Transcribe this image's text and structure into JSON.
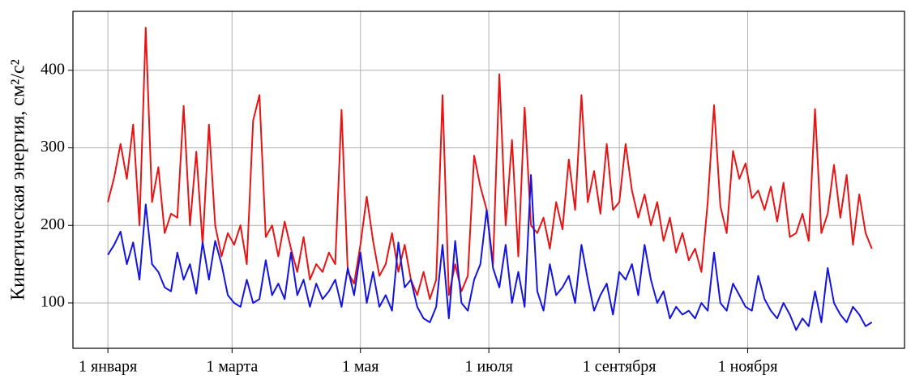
{
  "chart_data": {
    "type": "line",
    "y_label": "Кинетическая энергия, см²/с²",
    "x": [
      0,
      3,
      6,
      9,
      12,
      15,
      18,
      21,
      24,
      27,
      30,
      33,
      36,
      39,
      42,
      45,
      48,
      51,
      54,
      57,
      60,
      63,
      66,
      69,
      72,
      75,
      78,
      81,
      84,
      87,
      90,
      93,
      96,
      99,
      102,
      105,
      108,
      111,
      114,
      117,
      120,
      123,
      126,
      129,
      132,
      135,
      138,
      141,
      144,
      147,
      150,
      153,
      156,
      159,
      162,
      165,
      168,
      171,
      174,
      177,
      180,
      183,
      186,
      189,
      192,
      195,
      198,
      201,
      204,
      207,
      210,
      213,
      216,
      219,
      222,
      225,
      228,
      231,
      234,
      237,
      240,
      243,
      246,
      249,
      252,
      255,
      258,
      261,
      264,
      267,
      270,
      273,
      276,
      279,
      282,
      285,
      288,
      291,
      294,
      297,
      300,
      303,
      306,
      309,
      312,
      315,
      318,
      321,
      324,
      327,
      330,
      333,
      336,
      339,
      342,
      345,
      348,
      351,
      354,
      357,
      360,
      363
    ],
    "series": [
      {
        "color": "#e81414",
        "values": [
          230,
          262,
          305,
          260,
          330,
          200,
          455,
          230,
          275,
          190,
          215,
          210,
          354,
          200,
          295,
          175,
          330,
          200,
          160,
          190,
          175,
          200,
          150,
          335,
          368,
          185,
          200,
          160,
          205,
          170,
          140,
          185,
          130,
          150,
          140,
          165,
          150,
          349,
          140,
          125,
          175,
          237,
          180,
          135,
          150,
          190,
          140,
          175,
          130,
          110,
          140,
          105,
          130,
          368,
          110,
          150,
          115,
          135,
          290,
          250,
          220,
          150,
          395,
          200,
          310,
          160,
          352,
          200,
          190,
          210,
          170,
          230,
          195,
          285,
          220,
          368,
          230,
          270,
          215,
          305,
          220,
          230,
          305,
          245,
          210,
          240,
          200,
          230,
          180,
          210,
          165,
          190,
          155,
          170,
          140,
          230,
          355,
          225,
          190,
          296,
          260,
          280,
          235,
          245,
          220,
          250,
          205,
          255,
          185,
          190,
          215,
          180,
          350,
          190,
          215,
          278,
          210,
          265,
          175,
          240,
          190,
          170
        ]
      },
      {
        "color": "#1414e0",
        "values": [
          162,
          175,
          192,
          150,
          178,
          130,
          227,
          150,
          140,
          120,
          115,
          165,
          130,
          150,
          112,
          178,
          130,
          180,
          150,
          110,
          100,
          95,
          130,
          100,
          105,
          155,
          110,
          125,
          105,
          165,
          110,
          130,
          95,
          125,
          105,
          115,
          130,
          95,
          145,
          110,
          165,
          100,
          140,
          95,
          110,
          90,
          178,
          120,
          130,
          95,
          80,
          75,
          95,
          175,
          80,
          180,
          100,
          90,
          130,
          150,
          220,
          145,
          120,
          175,
          100,
          140,
          95,
          265,
          115,
          90,
          150,
          110,
          120,
          135,
          100,
          175,
          130,
          90,
          110,
          125,
          85,
          140,
          130,
          150,
          110,
          175,
          130,
          100,
          115,
          80,
          95,
          85,
          90,
          80,
          100,
          90,
          165,
          100,
          90,
          125,
          110,
          95,
          90,
          135,
          105,
          90,
          80,
          100,
          85,
          65,
          80,
          70,
          115,
          75,
          145,
          100,
          85,
          75,
          95,
          85,
          70,
          75
        ]
      }
    ],
    "xlim": [
      -16.6,
      378.5
    ],
    "xticks": [
      {
        "value": 0,
        "label": "1 января"
      },
      {
        "value": 59,
        "label": "1 марта"
      },
      {
        "value": 120,
        "label": "1 мая"
      },
      {
        "value": 181,
        "label": "1 июля"
      },
      {
        "value": 243,
        "label": "1 сентября"
      },
      {
        "value": 304,
        "label": "1 ноября"
      }
    ],
    "ylim": [
      41.5,
      476
    ],
    "yticks": [
      100,
      200,
      300,
      400
    ],
    "grid": true
  }
}
